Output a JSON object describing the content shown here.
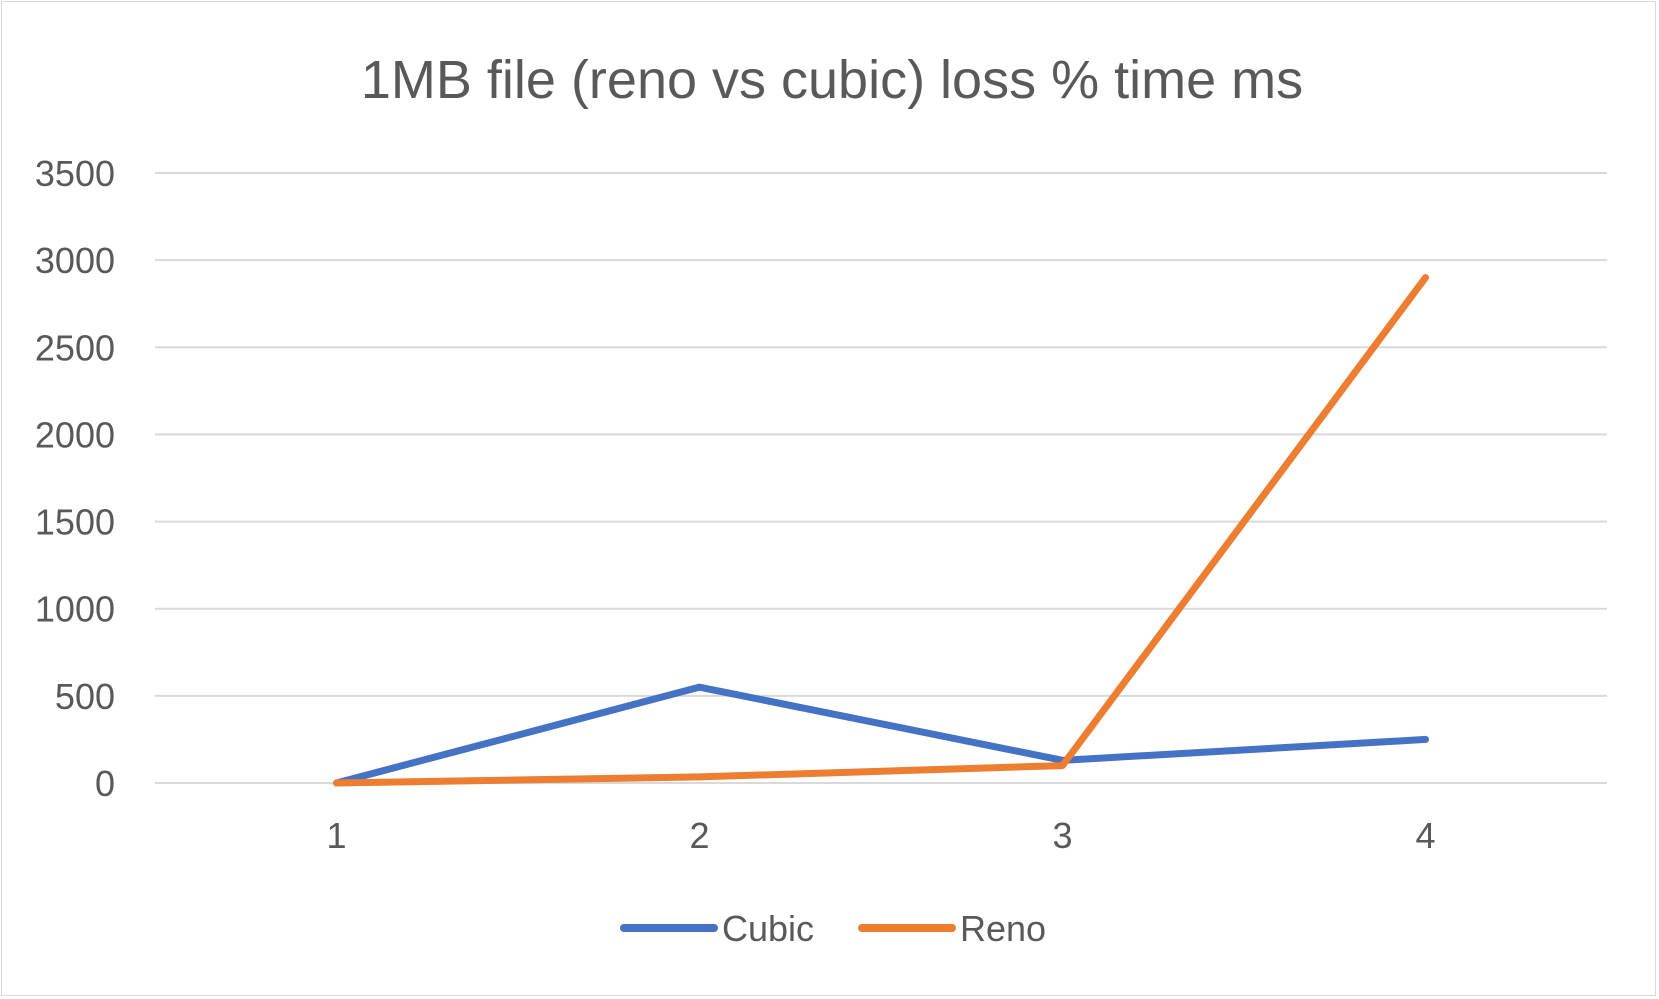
{
  "chart_data": {
    "type": "line",
    "title": "1MB file (reno vs cubic) loss % time ms",
    "xlabel": "",
    "ylabel": "",
    "categories": [
      "1",
      "2",
      "3",
      "4"
    ],
    "ylim": [
      0,
      3500
    ],
    "yticks": [
      0,
      500,
      1000,
      1500,
      2000,
      2500,
      3000,
      3500
    ],
    "grid": true,
    "legend_position": "bottom",
    "series": [
      {
        "name": "Cubic",
        "color": "#4472c4",
        "values": [
          0,
          550,
          130,
          250
        ]
      },
      {
        "name": "Reno",
        "color": "#ed7d31",
        "values": [
          0,
          35,
          100,
          2900
        ]
      }
    ]
  }
}
